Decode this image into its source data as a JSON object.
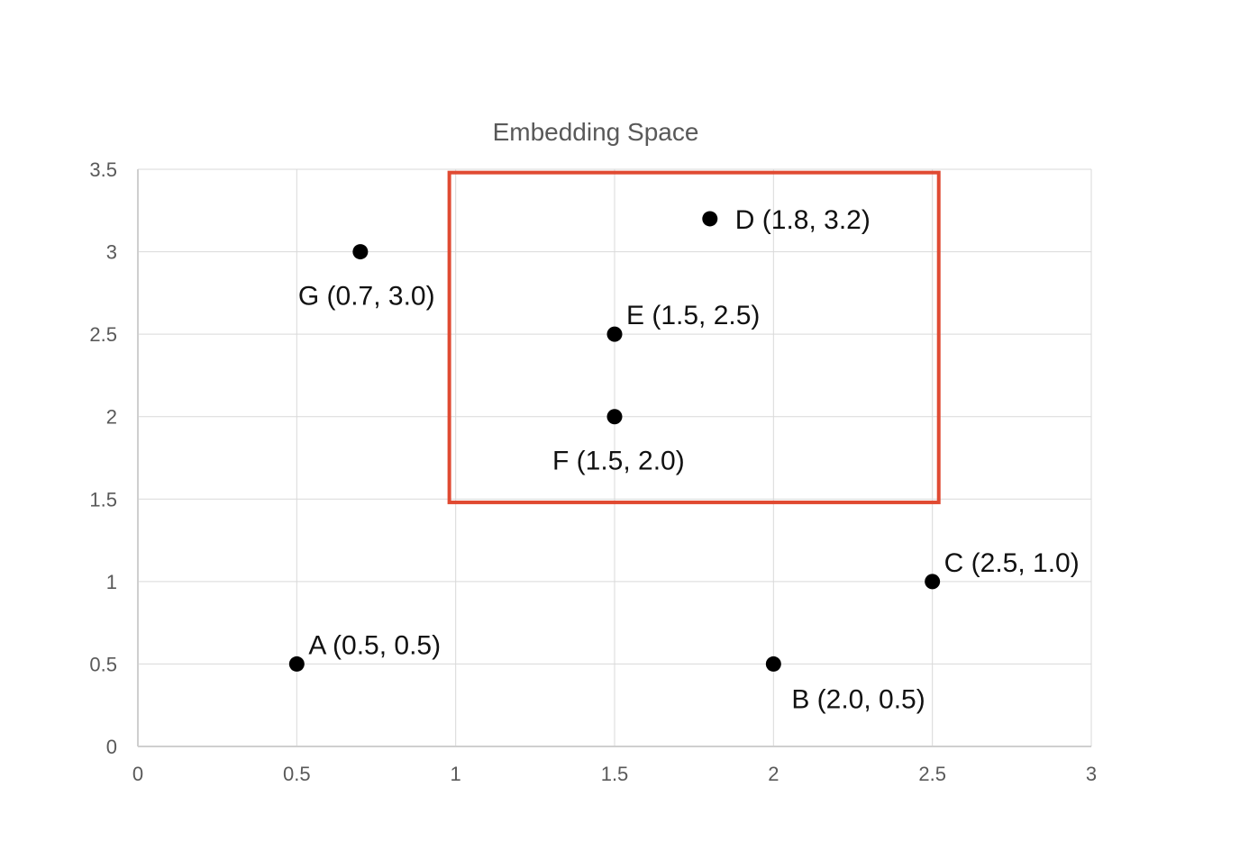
{
  "chart_data": {
    "type": "scatter",
    "title": "Embedding Space",
    "xlabel": "",
    "ylabel": "",
    "xlim": [
      0,
      3
    ],
    "ylim": [
      0,
      3.5
    ],
    "x_ticks": [
      0,
      0.5,
      1,
      1.5,
      2,
      2.5,
      3
    ],
    "y_ticks": [
      0,
      0.5,
      1,
      1.5,
      2,
      2.5,
      3,
      3.5
    ],
    "x_tick_labels": [
      "0",
      "0.5",
      "1",
      "1.5",
      "2",
      "2.5",
      "3"
    ],
    "y_tick_labels": [
      "0",
      "0.5",
      "1",
      "1.5",
      "2",
      "2.5",
      "3",
      "3.5"
    ],
    "grid": true,
    "legend": "none",
    "points": [
      {
        "x": 0.5,
        "y": 0.5,
        "label": "A (0.5, 0.5)",
        "label_position": "upper-right"
      },
      {
        "x": 2.0,
        "y": 0.5,
        "label": "B (2.0, 0.5)",
        "label_position": "below-right"
      },
      {
        "x": 2.5,
        "y": 1.0,
        "label": "C (2.5, 1.0)",
        "label_position": "upper-right"
      },
      {
        "x": 1.8,
        "y": 3.2,
        "label": "D (1.8, 3.2)",
        "label_position": "right"
      },
      {
        "x": 1.5,
        "y": 2.5,
        "label": "E (1.5, 2.5)",
        "label_position": "upper-right"
      },
      {
        "x": 1.5,
        "y": 2.0,
        "label": "F (1.5, 2.0)",
        "label_position": "below"
      },
      {
        "x": 0.7,
        "y": 3.0,
        "label": "G (0.7, 3.0)",
        "label_position": "below"
      }
    ],
    "highlight_box": {
      "x_range": [
        0.98,
        2.52
      ],
      "y_range": [
        1.48,
        3.48
      ],
      "color": "#e04a32"
    },
    "colors": {
      "point": "#000000",
      "grid": "#d9d9d9",
      "axis": "#cfcfcf",
      "highlight": "#e04a32",
      "text": "#595959"
    }
  }
}
